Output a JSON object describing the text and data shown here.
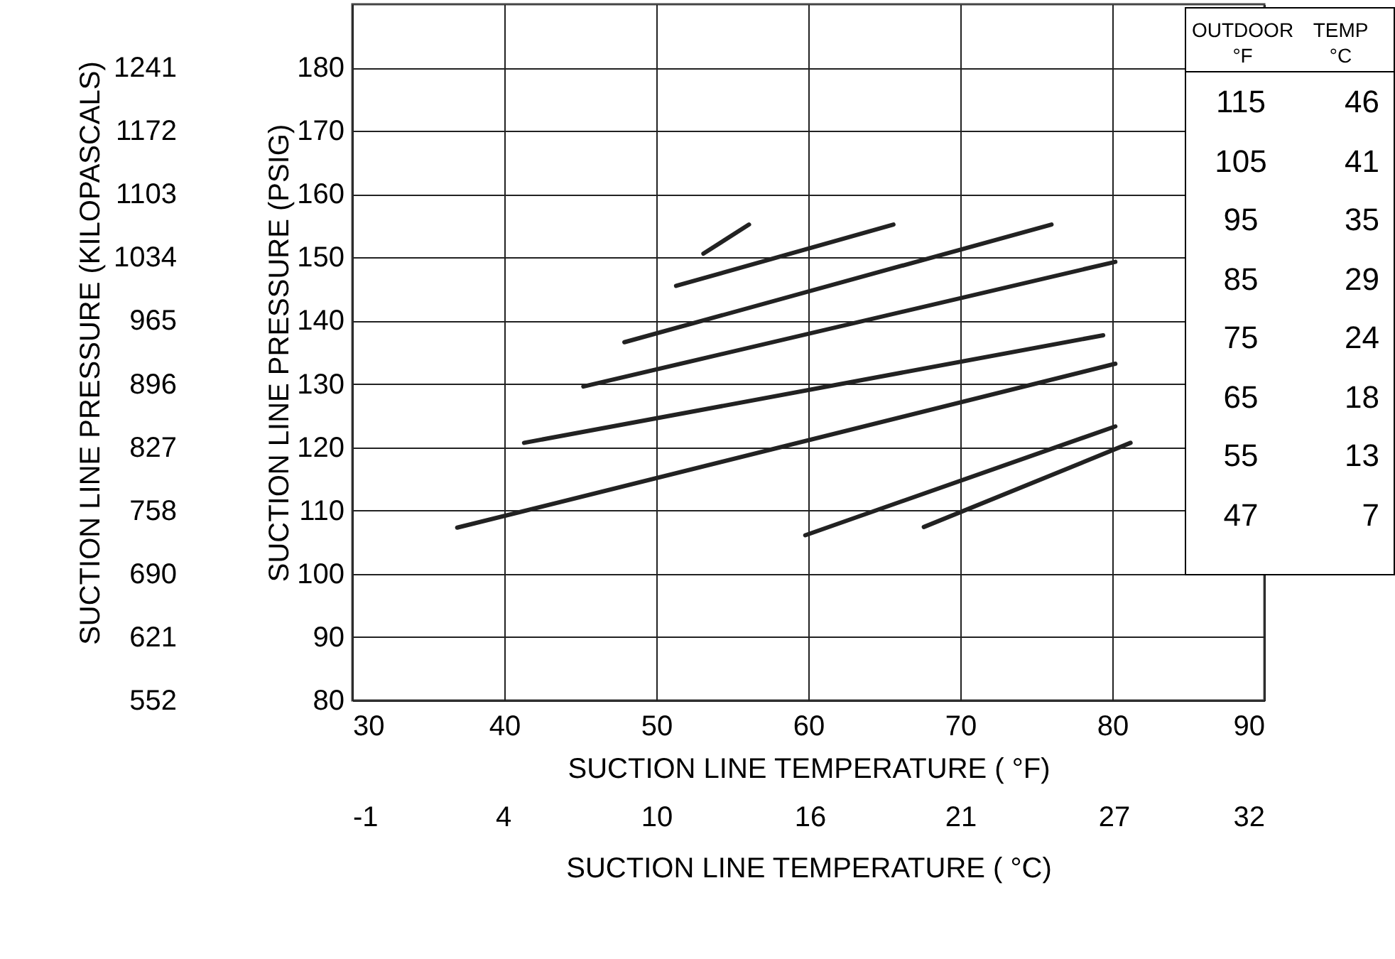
{
  "chart_data": {
    "type": "line",
    "xlabel": "SUCTION LINE TEMPERATURE ( °F)",
    "ylabel": "SUCTION LINE PRESSURE (PSIG)",
    "x2label": "SUCTION LINE TEMPERATURE ( °C)",
    "y2label": "SUCTION LINE PRESSURE (KILOPASCALS)",
    "xlim": [
      30,
      90
    ],
    "xticks": [
      30,
      40,
      50,
      60,
      70,
      80,
      90
    ],
    "ylim": [
      80,
      190
    ],
    "yticks": [
      80,
      90,
      100,
      110,
      120,
      130,
      140,
      150,
      160,
      170,
      180
    ],
    "x2lim": [
      -1.1,
      32.2
    ],
    "x2ticks": [
      {
        "value": -1.1,
        "label": "-1"
      },
      {
        "value": 4.4,
        "label": "4"
      },
      {
        "value": 10,
        "label": "10"
      },
      {
        "value": 15.6,
        "label": "16"
      },
      {
        "value": 21.1,
        "label": "21"
      },
      {
        "value": 26.7,
        "label": "27"
      },
      {
        "value": 32.2,
        "label": "32"
      }
    ],
    "y2lim": [
      551.6,
      1310
    ],
    "y2ticks": [
      {
        "value": 551.6,
        "label": "552"
      },
      {
        "value": 620.5,
        "label": "621"
      },
      {
        "value": 689.5,
        "label": "690"
      },
      {
        "value": 758.5,
        "label": "758"
      },
      {
        "value": 827.4,
        "label": "827"
      },
      {
        "value": 896.3,
        "label": "896"
      },
      {
        "value": 965.3,
        "label": "965"
      },
      {
        "value": 1034.2,
        "label": "1034"
      },
      {
        "value": 1103.2,
        "label": "1103"
      },
      {
        "value": 1172.1,
        "label": "1172"
      },
      {
        "value": 1241.1,
        "label": "1241"
      }
    ],
    "grid": true,
    "line_style": "solid",
    "series": [
      {
        "color": "#222222",
        "x": [
          53.1,
          56.1
        ],
        "values": [
          150.6,
          155.2
        ]
      },
      {
        "color": "#222222",
        "x": [
          51.3,
          65.6
        ],
        "values": [
          145.5,
          155.2
        ]
      },
      {
        "color": "#222222",
        "x": [
          47.9,
          76.0
        ],
        "values": [
          136.6,
          155.2
        ]
      },
      {
        "color": "#222222",
        "x": [
          45.2,
          80.2
        ],
        "values": [
          129.6,
          149.3
        ]
      },
      {
        "color": "#222222",
        "x": [
          41.3,
          79.4
        ],
        "values": [
          120.7,
          137.7
        ]
      },
      {
        "color": "#222222",
        "x": [
          36.9,
          80.2
        ],
        "values": [
          107.3,
          133.2
        ]
      },
      {
        "color": "#222222",
        "x": [
          59.8,
          80.2
        ],
        "values": [
          106.1,
          123.3
        ]
      },
      {
        "color": "#222222",
        "x": [
          67.6,
          81.2
        ],
        "values": [
          107.4,
          120.7
        ]
      }
    ],
    "annotations": [
      "OUTDOOR",
      "TEMP",
      "°F",
      "°C",
      "115",
      "46",
      "105",
      "41",
      "95",
      "35",
      "85",
      "29",
      "75",
      "24",
      "65",
      "18",
      "55",
      "13",
      "47",
      "7"
    ]
  }
}
